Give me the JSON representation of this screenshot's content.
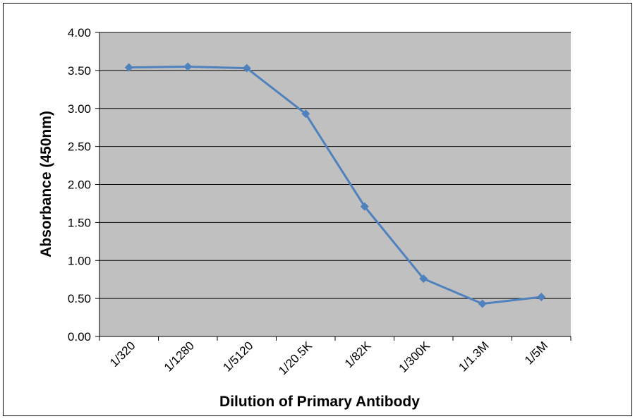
{
  "chart_data": {
    "type": "line",
    "x_label": "Dilution of Primary Antibody",
    "y_label": "Absorbance (450nm)",
    "categories": [
      "1/320",
      "1/1280",
      "1/5120",
      "1/20.5K",
      "1/82K",
      "1/300K",
      "1/1.3M",
      "1/5M"
    ],
    "series": [
      {
        "color": "#4f81bd",
        "values": [
          3.54,
          3.55,
          3.53,
          2.93,
          1.71,
          0.76,
          0.43,
          0.52
        ]
      }
    ],
    "ylim": [
      0,
      4
    ],
    "yticks": [
      {
        "value": 0,
        "label": "0.00"
      },
      {
        "value": 0.5,
        "label": "0.50"
      },
      {
        "value": 1,
        "label": "1.00"
      },
      {
        "value": 1.5,
        "label": "1.50"
      },
      {
        "value": 2,
        "label": "2.00"
      },
      {
        "value": 2.5,
        "label": "2.50"
      },
      {
        "value": 3,
        "label": "3.00"
      },
      {
        "value": 3.5,
        "label": "3.50"
      },
      {
        "value": 4,
        "label": "4.00"
      }
    ],
    "grid": true,
    "plot_background": "#c0c0c0"
  }
}
